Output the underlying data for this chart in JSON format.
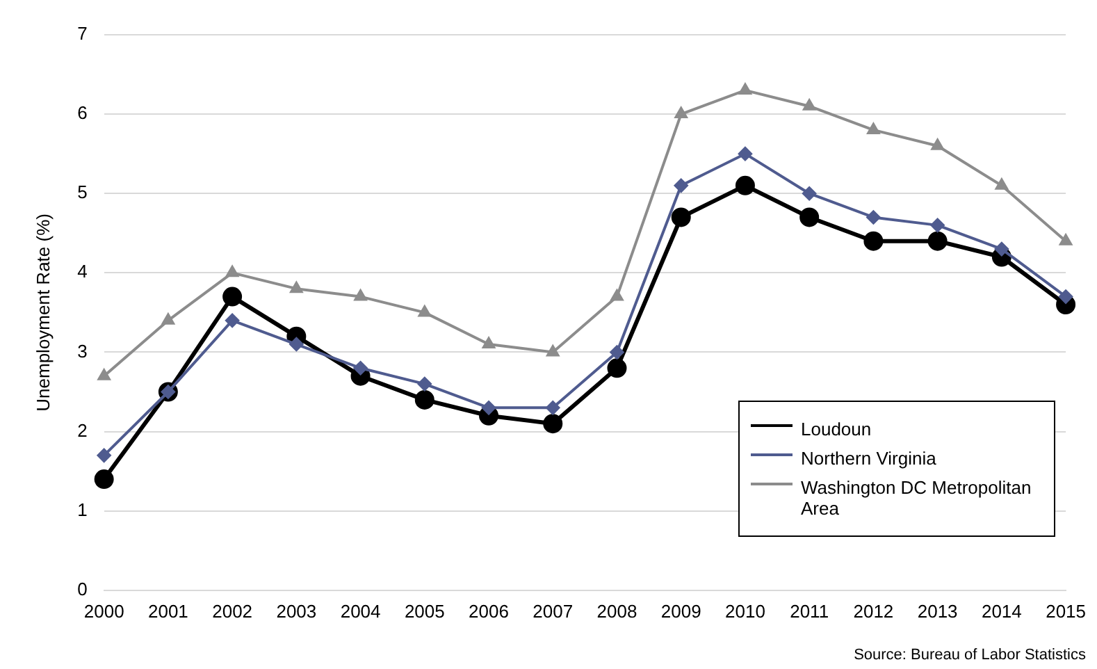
{
  "chart_data": {
    "type": "line",
    "ylabel": "Unemployment Rate (%)",
    "categories": [
      "2000",
      "2001",
      "2002",
      "2003",
      "2004",
      "2005",
      "2006",
      "2007",
      "2008",
      "2009",
      "2010",
      "2011",
      "2012",
      "2013",
      "2014",
      "2015"
    ],
    "series": [
      {
        "name": "Loudoun",
        "color": "#000000",
        "marker": "circle",
        "values": [
          1.4,
          2.5,
          3.7,
          3.2,
          2.7,
          2.4,
          2.2,
          2.1,
          2.8,
          4.7,
          5.1,
          4.7,
          4.4,
          4.4,
          4.2,
          3.6
        ]
      },
      {
        "name": "Northern Virginia",
        "color": "#4f5b8f",
        "marker": "diamond",
        "values": [
          1.7,
          2.5,
          3.4,
          3.1,
          2.8,
          2.6,
          2.3,
          2.3,
          3.0,
          5.1,
          5.5,
          5.0,
          4.7,
          4.6,
          4.3,
          3.7
        ]
      },
      {
        "name": "Washington DC Metropolitan Area",
        "color": "#8c8c8c",
        "marker": "triangle",
        "values": [
          2.7,
          3.4,
          4.0,
          3.8,
          3.7,
          3.5,
          3.1,
          3.0,
          3.7,
          6.0,
          6.3,
          6.1,
          5.8,
          5.6,
          5.1,
          4.4
        ]
      }
    ],
    "ylim": [
      0,
      7
    ],
    "yticks": [
      0,
      1,
      2,
      3,
      4,
      5,
      6,
      7
    ],
    "grid": "y",
    "legend": "bottom right",
    "annotations": [
      "Source: Bureau of Labor Statistics"
    ]
  }
}
